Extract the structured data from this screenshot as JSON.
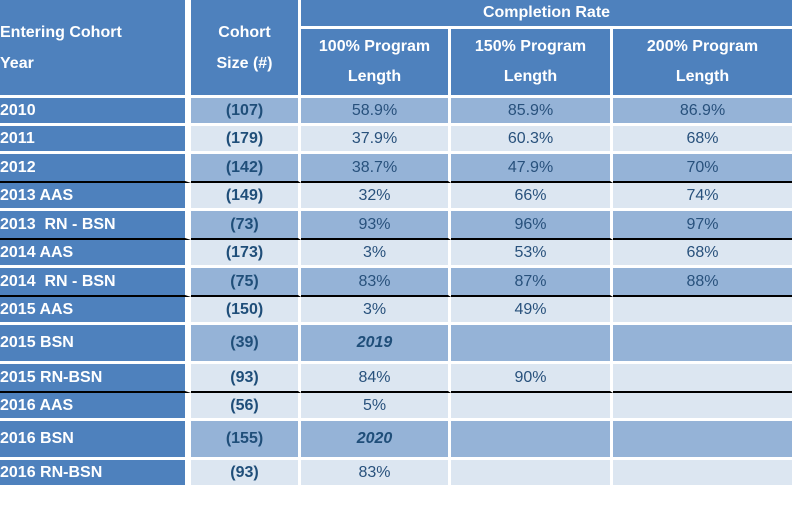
{
  "colors": {
    "header_blue": "#4E81BD",
    "row_dark": "#95B3D7",
    "row_light": "#DCE6F1",
    "text_navy": "#1F4E79",
    "text_data": "#28517C",
    "border_white": "#FFFFFF",
    "divider_black": "#000000"
  },
  "table": {
    "header": {
      "entering_cohort": {
        "line1": "Entering Cohort",
        "line2": "Year"
      },
      "cohort_size": {
        "line1": "Cohort",
        "line2": "Size (#)"
      },
      "completion_rate": "Completion Rate",
      "columns": [
        {
          "line1": "100% Program",
          "line2": "Length"
        },
        {
          "line1": "150% Program",
          "line2": "Length"
        },
        {
          "line1": "200% Program",
          "line2": "Length"
        }
      ]
    },
    "rows": [
      {
        "label": "2010",
        "size": "(107)",
        "p100": "58.9%",
        "p150": "85.9%",
        "p200": "86.9%",
        "shade": "dark",
        "divider": false,
        "tall": false,
        "note": false
      },
      {
        "label": "2011",
        "size": "(179)",
        "p100": "37.9%",
        "p150": "60.3%",
        "p200": "68%",
        "shade": "light",
        "divider": false,
        "tall": false,
        "note": false
      },
      {
        "label": "2012",
        "size": "(142)",
        "p100": "38.7%",
        "p150": "47.9%",
        "p200": "70%",
        "shade": "dark",
        "divider": true,
        "tall": false,
        "note": false
      },
      {
        "label": "2013 AAS",
        "size": "(149)",
        "p100": "32%",
        "p150": "66%",
        "p200": "74%",
        "shade": "light",
        "divider": false,
        "tall": false,
        "note": false
      },
      {
        "label": "2013  RN - BSN",
        "size": "(73)",
        "p100": "93%",
        "p150": "96%",
        "p200": "97%",
        "shade": "dark",
        "divider": true,
        "tall": false,
        "note": false
      },
      {
        "label": "2014 AAS",
        "size": "(173)",
        "p100": "3%",
        "p150": "53%",
        "p200": "68%",
        "shade": "light",
        "divider": false,
        "tall": false,
        "note": false
      },
      {
        "label": "2014  RN - BSN",
        "size": "(75)",
        "p100": "83%",
        "p150": "87%",
        "p200": "88%",
        "shade": "dark",
        "divider": true,
        "tall": false,
        "note": false
      },
      {
        "label": "2015 AAS",
        "size": "(150)",
        "p100": "3%",
        "p150": "49%",
        "p200": "",
        "shade": "light",
        "divider": false,
        "tall": false,
        "note": false
      },
      {
        "label": "2015 BSN",
        "size": "(39)",
        "p100": "2019",
        "p150": "",
        "p200": "",
        "shade": "dark",
        "divider": false,
        "tall": true,
        "note": true
      },
      {
        "label": "2015 RN-BSN",
        "size": "(93)",
        "p100": "84%",
        "p150": "90%",
        "p200": "",
        "shade": "light",
        "divider": true,
        "tall": false,
        "note": false
      },
      {
        "label": "2016 AAS",
        "size": "(56)",
        "p100": "5%",
        "p150": "",
        "p200": "",
        "shade": "light",
        "divider": false,
        "tall": false,
        "note": false
      },
      {
        "label": "2016 BSN",
        "size": "(155)",
        "p100": "2020",
        "p150": "",
        "p200": "",
        "shade": "dark",
        "divider": false,
        "tall": true,
        "note": true
      },
      {
        "label": "2016 RN-BSN",
        "size": "(93)",
        "p100": "83%",
        "p150": "",
        "p200": "",
        "shade": "light",
        "divider": false,
        "tall": false,
        "note": false
      }
    ]
  }
}
